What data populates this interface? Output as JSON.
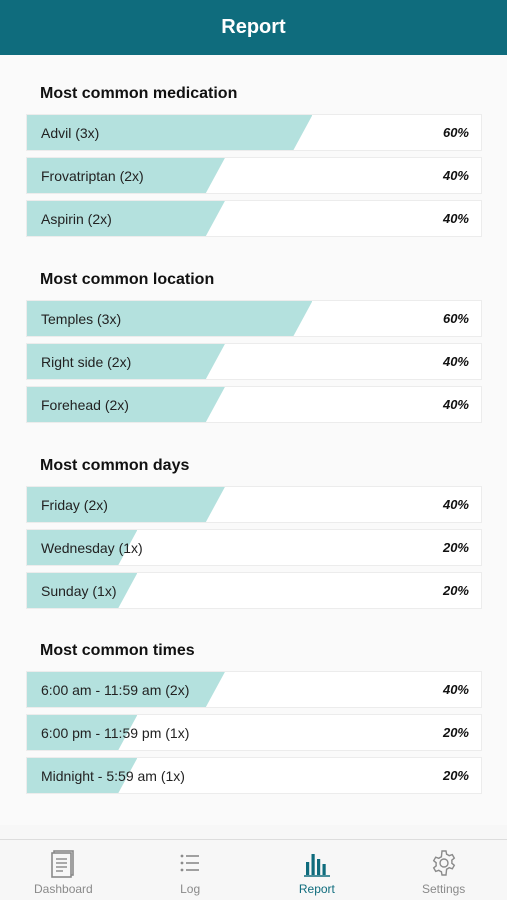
{
  "header": {
    "title": "Report"
  },
  "sections": [
    {
      "title": "Most common medication",
      "rows": [
        {
          "label": "Advil (3x)",
          "pct": "60%",
          "fraction": 0.6
        },
        {
          "label": "Frovatriptan (2x)",
          "pct": "40%",
          "fraction": 0.4
        },
        {
          "label": "Aspirin (2x)",
          "pct": "40%",
          "fraction": 0.4
        }
      ]
    },
    {
      "title": "Most common location",
      "rows": [
        {
          "label": "Temples (3x)",
          "pct": "60%",
          "fraction": 0.6
        },
        {
          "label": "Right side (2x)",
          "pct": "40%",
          "fraction": 0.4
        },
        {
          "label": "Forehead (2x)",
          "pct": "40%",
          "fraction": 0.4
        }
      ]
    },
    {
      "title": "Most common days",
      "rows": [
        {
          "label": "Friday (2x)",
          "pct": "40%",
          "fraction": 0.4
        },
        {
          "label": "Wednesday (1x)",
          "pct": "20%",
          "fraction": 0.2
        },
        {
          "label": "Sunday (1x)",
          "pct": "20%",
          "fraction": 0.2
        }
      ]
    },
    {
      "title": "Most common times",
      "rows": [
        {
          "label": "6:00 am - 11:59 am (2x)",
          "pct": "40%",
          "fraction": 0.4
        },
        {
          "label": "6:00 pm - 11:59 pm (1x)",
          "pct": "20%",
          "fraction": 0.2
        },
        {
          "label": "Midnight - 5:59 am (1x)",
          "pct": "20%",
          "fraction": 0.2
        }
      ]
    }
  ],
  "tabs": [
    {
      "label": "Dashboard",
      "icon": "dashboard-icon",
      "active": false
    },
    {
      "label": "Log",
      "icon": "list-icon",
      "active": false
    },
    {
      "label": "Report",
      "icon": "bar-chart-icon",
      "active": true
    },
    {
      "label": "Settings",
      "icon": "gear-icon",
      "active": false
    }
  ],
  "colors": {
    "header": "#0f6c7d",
    "bar": "#b4e1de",
    "active_tab": "#0f6c7d"
  }
}
